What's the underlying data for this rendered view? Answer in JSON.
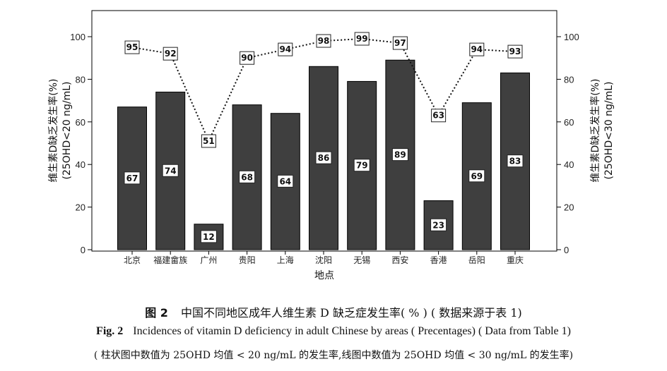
{
  "chart_data": {
    "type": "bar+line",
    "categories": [
      "北京",
      "福建畲族",
      "广州",
      "贵阳",
      "上海",
      "沈阳",
      "无锡",
      "西安",
      "香港",
      "岳阳",
      "重庆"
    ],
    "series": [
      {
        "type": "bar",
        "axis": "left",
        "values": [
          67,
          74,
          12,
          68,
          64,
          86,
          79,
          89,
          23,
          69,
          83
        ]
      },
      {
        "type": "line",
        "axis": "right",
        "values": [
          95,
          92,
          51,
          90,
          94,
          98,
          99,
          97,
          63,
          94,
          93
        ]
      }
    ],
    "xlabel": "地点",
    "ylabel_left": [
      "维生素D缺乏发生率(%)",
      "(25OHD<20 ng/mL)"
    ],
    "ylabel_right": [
      "维生素D缺乏发生率(%)",
      "(25OHD<30 ng/mL)"
    ],
    "ylim": [
      0,
      100
    ],
    "yticks": [
      0,
      20,
      40,
      60,
      80,
      100
    ],
    "colors": {
      "bar": "#3f3f3f",
      "line": "#111111",
      "label_box": "#ffffff"
    },
    "legend": "none",
    "grid": false
  },
  "caption": {
    "cn_fig": "图 2",
    "cn_text": "中国不同地区成年人维生素 D 缺乏症发生率( % ) ( 数据来源于表 1)",
    "en_fig": "Fig. 2",
    "en_text": "Incidences of vitamin D deficiency in adult Chinese by areas ( Precentages)  ( Data from Table 1)",
    "note": "( 柱状图中数值为 25OHD 均值  <  20 ng/mL 的发生率,线图中数值为 25OHD 均值  <  30 ng/mL 的发生率)"
  }
}
